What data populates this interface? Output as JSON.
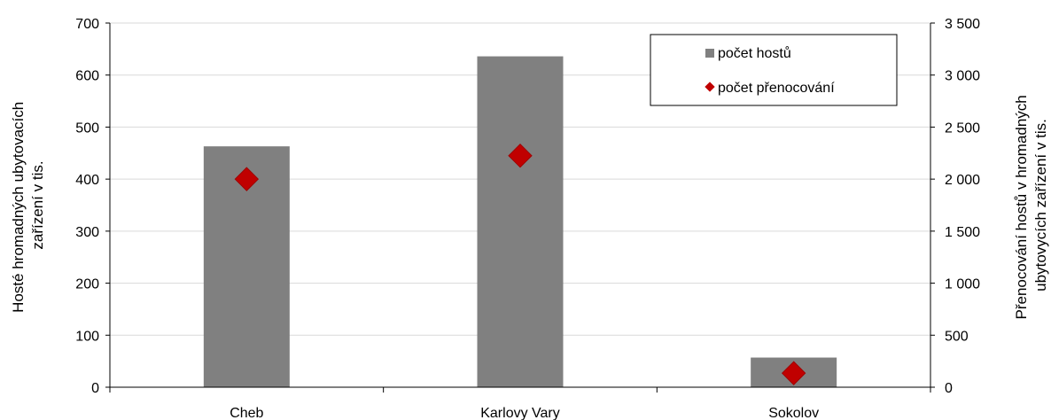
{
  "chart_data": {
    "type": "bar",
    "categories": [
      "Cheb",
      "Karlovy Vary",
      "Sokolov"
    ],
    "series": [
      {
        "name": "počet hostů",
        "kind": "bar",
        "axis": "left",
        "color": "#808080",
        "values": [
          463,
          636,
          57
        ]
      },
      {
        "name": "počet přenocování",
        "kind": "scatter",
        "marker": "diamond",
        "axis": "right",
        "color": "#c00000",
        "values": [
          2000,
          2225,
          135
        ]
      }
    ],
    "y_left": {
      "label_lines": [
        "Hosté hromadných ubytovacích",
        "zařízení v tis."
      ],
      "ylim": [
        0,
        700
      ],
      "ticks": [
        0,
        100,
        200,
        300,
        400,
        500,
        600,
        700
      ],
      "tick_labels": [
        "0",
        "100",
        "200",
        "300",
        "400",
        "500",
        "600",
        "700"
      ]
    },
    "y_right": {
      "label_lines": [
        "Přenocování hostů v hromadných",
        "ubytovycích zařízení v tis."
      ],
      "ylim": [
        0,
        3500
      ],
      "ticks": [
        0,
        500,
        1000,
        1500,
        2000,
        2500,
        3000,
        3500
      ],
      "tick_labels": [
        "0",
        "500",
        "1 000",
        "1 500",
        "2 000",
        "2 500",
        "3 000",
        "3 500"
      ]
    },
    "grid": true,
    "legend": {
      "position": "top-right",
      "entries": [
        "počet hostů",
        "počet přenocování"
      ]
    }
  }
}
